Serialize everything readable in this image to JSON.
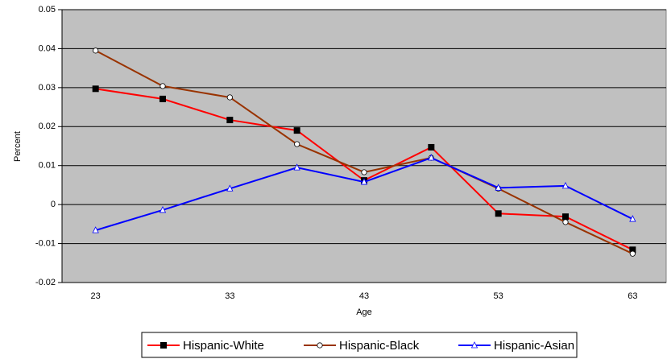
{
  "chart_data": {
    "type": "line",
    "x_label": "Age",
    "y_label": "Percent",
    "x": [
      23,
      28,
      33,
      38,
      43,
      48,
      53,
      58,
      63
    ],
    "xlim": [
      20.5,
      65.5
    ],
    "xticks": [
      23,
      33,
      43,
      53,
      63
    ],
    "ylim": [
      -0.02,
      0.05
    ],
    "yticks": [
      -0.02,
      -0.01,
      0,
      0.01,
      0.02,
      0.03,
      0.04,
      0.05
    ],
    "grid": true,
    "legend": "bottom",
    "background": "#c0c0c0",
    "series": [
      {
        "name": "Hispanic-White",
        "color": "#ff0000",
        "marker": "square",
        "values": [
          0.0297,
          0.0271,
          0.0217,
          0.019,
          0.0062,
          0.0147,
          -0.0023,
          -0.0031,
          -0.0116
        ]
      },
      {
        "name": "Hispanic-Black",
        "color": "#993300",
        "marker": "circle",
        "values": [
          0.0395,
          0.0304,
          0.0275,
          0.0155,
          0.0083,
          0.012,
          0.0041,
          -0.0045,
          -0.0126
        ]
      },
      {
        "name": "Hispanic-Asian",
        "color": "#0000ff",
        "marker": "triangle",
        "values": [
          -0.0066,
          -0.0014,
          0.0041,
          0.0095,
          0.0058,
          0.012,
          0.0043,
          0.0048,
          -0.0037
        ]
      }
    ]
  }
}
